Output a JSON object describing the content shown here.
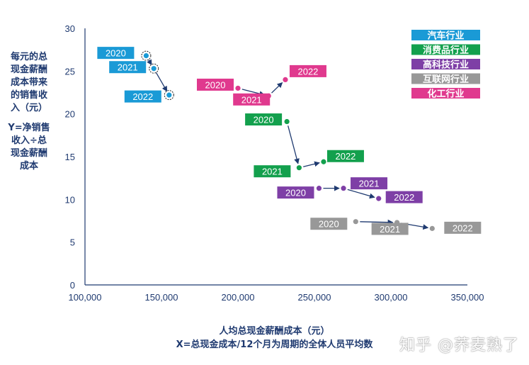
{
  "chart_data": {
    "type": "scatter",
    "y_title_lines": [
      "每元的总",
      "现金薪酬",
      "成本带来",
      "的销售收",
      "入（元）"
    ],
    "y_formula_lines": [
      "Y=净销售",
      "收入÷总",
      "现金薪酬",
      "成本"
    ],
    "xlabel": "人均总现金薪酬成本（元）",
    "xlabel_sub": "X=总现金成本/12个月为周期的全体人员平均数",
    "xlim": [
      100000,
      350000
    ],
    "ylim": [
      0,
      30
    ],
    "xticks": [
      100000,
      150000,
      200000,
      250000,
      300000,
      350000
    ],
    "xtick_labels": [
      "100,000",
      "150,000",
      "200,000",
      "250,000",
      "300,000",
      "350,000"
    ],
    "yticks": [
      0,
      5,
      10,
      15,
      20,
      25,
      30
    ],
    "ytick_labels": [
      "0",
      "5",
      "10",
      "15",
      "20",
      "25",
      "30"
    ],
    "grid": false,
    "legend_position": "top-right",
    "series": [
      {
        "name": "汽车行业",
        "color": "#1a9ad6",
        "points": [
          {
            "x": 140000,
            "y": 26.8,
            "label": "2020"
          },
          {
            "x": 145000,
            "y": 25.3,
            "label": "2021"
          },
          {
            "x": 155000,
            "y": 22.2,
            "label": "2022"
          }
        ]
      },
      {
        "name": "消费品行业",
        "color": "#13a04d",
        "points": [
          {
            "x": 232000,
            "y": 19.1,
            "label": "2020"
          },
          {
            "x": 240000,
            "y": 13.7,
            "label": "2021"
          },
          {
            "x": 256000,
            "y": 14.4,
            "label": "2022"
          }
        ]
      },
      {
        "name": "高科技行业",
        "color": "#7e3fa6",
        "points": [
          {
            "x": 253000,
            "y": 11.3,
            "label": "2020"
          },
          {
            "x": 269000,
            "y": 11.3,
            "label": "2021"
          },
          {
            "x": 292000,
            "y": 10.1,
            "label": "2022"
          }
        ]
      },
      {
        "name": "互联网行业",
        "color": "#989898",
        "points": [
          {
            "x": 277000,
            "y": 7.4,
            "label": "2020"
          },
          {
            "x": 304000,
            "y": 7.3,
            "label": "2021"
          },
          {
            "x": 327000,
            "y": 6.6,
            "label": "2022"
          }
        ]
      },
      {
        "name": "化工行业",
        "color": "#e0398e",
        "points": [
          {
            "x": 200000,
            "y": 23.0,
            "label": "2020"
          },
          {
            "x": 220000,
            "y": 22.1,
            "label": "2021"
          },
          {
            "x": 231000,
            "y": 24.0,
            "label": "2022"
          }
        ]
      }
    ]
  },
  "watermark": "知乎 @荞麦熟了"
}
